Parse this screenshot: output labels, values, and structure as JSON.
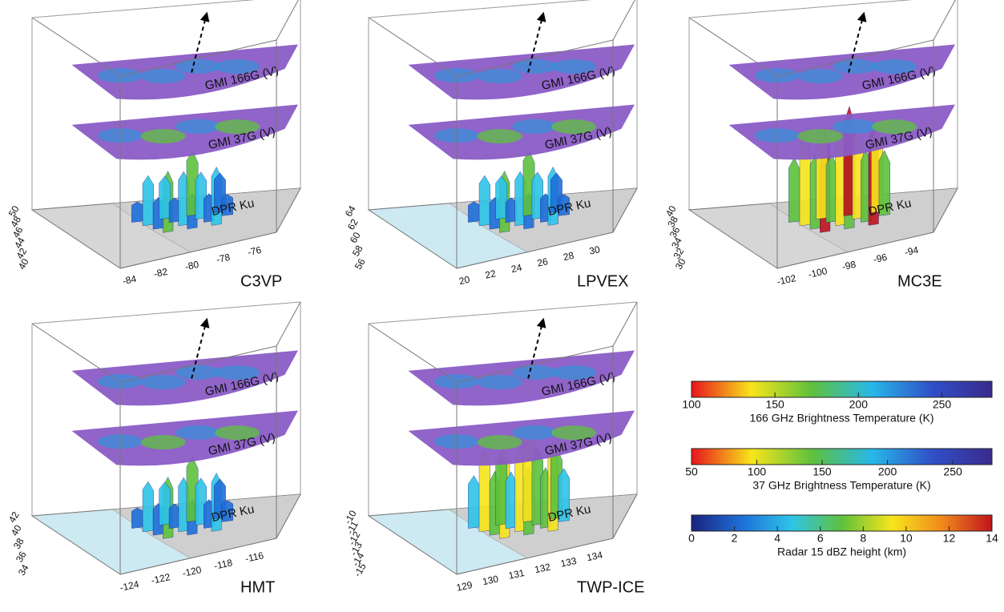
{
  "panels": [
    {
      "title": "C3VP",
      "layers": [
        "GMI 166G (V)",
        "GMI 37G (V)",
        "DPR Ku"
      ],
      "x_ticks": [
        -84,
        -82,
        -80,
        -78,
        -76
      ],
      "y_ticks": [
        40,
        42,
        44,
        46,
        48,
        50
      ]
    },
    {
      "title": "LPVEX",
      "layers": [
        "GMI 166G (V)",
        "GMI 37G (V)",
        "DPR Ku"
      ],
      "x_ticks": [
        20,
        22,
        24,
        26,
        28,
        30
      ],
      "y_ticks": [
        56,
        58,
        60,
        62,
        64
      ]
    },
    {
      "title": "MC3E",
      "layers": [
        "GMI 166G (V)",
        "GMI 37G (V)",
        "DPR Ku"
      ],
      "x_ticks": [
        -102,
        -100,
        -98,
        -96,
        -94
      ],
      "y_ticks": [
        30,
        32,
        34,
        36,
        38,
        40
      ]
    },
    {
      "title": "HMT",
      "layers": [
        "GMI 166G (V)",
        "GMI 37G (V)",
        "DPR Ku"
      ],
      "x_ticks": [
        -124,
        -122,
        -120,
        -118,
        -116
      ],
      "y_ticks": [
        34,
        36,
        38,
        40,
        42
      ]
    },
    {
      "title": "TWP-ICE",
      "layers": [
        "GMI 166G (V)",
        "GMI 37G (V)",
        "DPR Ku"
      ],
      "x_ticks": [
        129,
        130,
        131,
        132,
        133,
        134
      ],
      "y_ticks": [
        -15,
        -14,
        -13,
        -12,
        -11,
        -10
      ]
    }
  ],
  "colorbars": [
    {
      "label": "166 GHz Brightness Temperature (K)",
      "lim": [
        100,
        280
      ],
      "ticks": [
        100,
        150,
        200,
        250
      ],
      "colors": [
        "#e8141c",
        "#f7e51b",
        "#5ec13d",
        "#27b8e8",
        "#3050c8",
        "#3a2a8c"
      ]
    },
    {
      "label": "37 GHz Brightness Temperature (K)",
      "lim": [
        50,
        280
      ],
      "ticks": [
        50,
        100,
        150,
        200,
        250
      ],
      "colors": [
        "#e8141c",
        "#f7e51b",
        "#5ec13d",
        "#27b8e8",
        "#3050c8",
        "#3a2a8c"
      ]
    },
    {
      "label": "Radar 15 dBZ height (km)",
      "lim": [
        0,
        14
      ],
      "ticks": [
        0,
        2,
        4,
        6,
        8,
        10,
        12,
        14
      ],
      "colors": [
        "#1a237e",
        "#1e6fd9",
        "#2ec4e8",
        "#5ec13d",
        "#f7e51b",
        "#f08a1c",
        "#c0131c"
      ]
    }
  ]
}
